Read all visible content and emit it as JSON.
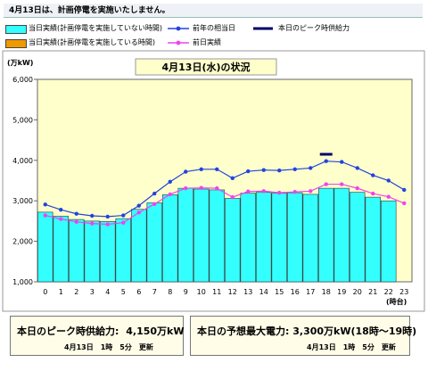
{
  "notice": "4月13日は、計画停電を実施いたしません。",
  "legend": [
    {
      "label": "当日実績(計画停電を実施していない時間)",
      "color": "#33ffff",
      "kind": "box"
    },
    {
      "label": "前年の相当日",
      "color": "#2244dd",
      "kind": "line-dot"
    },
    {
      "label": "本日のピーク時供給力",
      "color": "#000066",
      "kind": "bar-line"
    },
    {
      "label": "当日実績(計画停電を実施している時間)",
      "color": "#ee9900",
      "kind": "box"
    },
    {
      "label": "前日実績",
      "color": "#ee44ee",
      "kind": "line-dot"
    }
  ],
  "chart_data": {
    "type": "bar",
    "title": "4月13日(水)の状況",
    "ylabel": "(万kW)",
    "xlabel": "(時台)",
    "x": [
      0,
      1,
      2,
      3,
      4,
      5,
      6,
      7,
      8,
      9,
      10,
      11,
      12,
      13,
      14,
      15,
      16,
      17,
      18,
      19,
      20,
      21,
      22,
      23
    ],
    "xticklabels": [
      "0",
      "1",
      "2",
      "3",
      "4",
      "5",
      "6",
      "7",
      "8",
      "9",
      "10",
      "11",
      "12",
      "13",
      "14",
      "15",
      "16",
      "17",
      "18",
      "19",
      "20",
      "21",
      "22",
      "23"
    ],
    "ylim": [
      1000,
      6000
    ],
    "yticks": [
      1000,
      2000,
      3000,
      4000,
      5000,
      6000
    ],
    "yticklabels": [
      "1,000",
      "2,000",
      "3,000",
      "4,000",
      "5,000",
      "6,000"
    ],
    "series": [
      {
        "name": "当日実績(計画停電を実施していない時間)",
        "type": "bar",
        "color": "#33ffff",
        "values": [
          2720,
          2620,
          2540,
          2500,
          2490,
          2560,
          2790,
          2950,
          3150,
          3310,
          3290,
          3270,
          3060,
          3190,
          3210,
          3190,
          3200,
          3160,
          3310,
          3310,
          3210,
          3090,
          3000,
          null
        ]
      },
      {
        "name": "前年の相当日",
        "type": "line",
        "color": "#2244dd",
        "values": [
          2910,
          2780,
          2680,
          2630,
          2610,
          2640,
          2880,
          3180,
          3470,
          3720,
          3780,
          3780,
          3560,
          3730,
          3760,
          3750,
          3780,
          3810,
          3980,
          3960,
          3810,
          3630,
          3500,
          3270
        ]
      },
      {
        "name": "前日実績",
        "type": "line",
        "color": "#ee44ee",
        "values": [
          2640,
          2550,
          2480,
          2440,
          2420,
          2460,
          2710,
          2920,
          3160,
          3310,
          3320,
          3310,
          3090,
          3230,
          3240,
          3200,
          3220,
          3240,
          3410,
          3410,
          3310,
          3180,
          3100,
          2940
        ]
      },
      {
        "name": "本日のピーク時供給力",
        "type": "hline",
        "color": "#000066",
        "x_range": [
          17.6,
          18.4
        ],
        "value": 4150
      }
    ],
    "legend_position": "top",
    "grid": false
  },
  "info": {
    "peak_supply_label": "本日のピーク時供給力:",
    "peak_supply_value": "4,150",
    "peak_supply_unit": "万kW",
    "peak_update": "4月13日　1時　5分　更新",
    "forecast_label": "本日の予想最大電力:",
    "forecast_value": "3,300",
    "forecast_unit": "万kW(18時～19時)",
    "forecast_update": "4月13日　1時　5分　更新"
  }
}
